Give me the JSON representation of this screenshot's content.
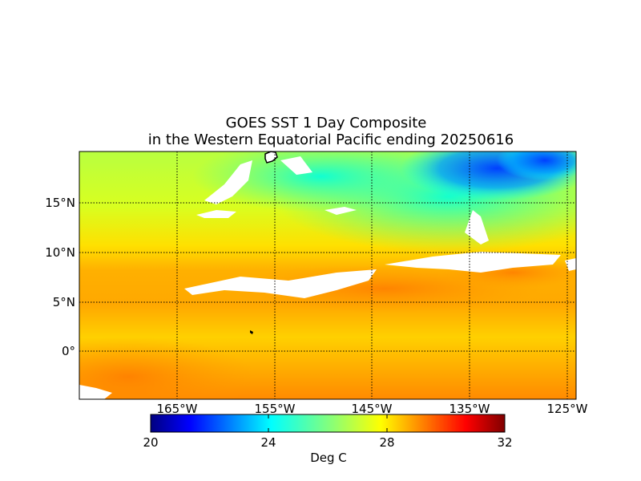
{
  "title_line1": "GOES SST 1 Day Composite",
  "title_line2": "in the Western Equatorial Pacific ending 20250616",
  "lat_labels": [
    "15°N",
    "10°N",
    "5°N",
    "0°"
  ],
  "lon_labels": [
    "165°W",
    "155°W",
    "145°W",
    "135°W",
    "125°W"
  ],
  "colorbar": {
    "ticks": [
      "20",
      "24",
      "28",
      "32"
    ],
    "units": "Deg C",
    "min": 20,
    "max": 32
  },
  "colors": {
    "cold": "#0000a0",
    "warm": "#ff8000",
    "land_mask": "#ffffff"
  }
}
